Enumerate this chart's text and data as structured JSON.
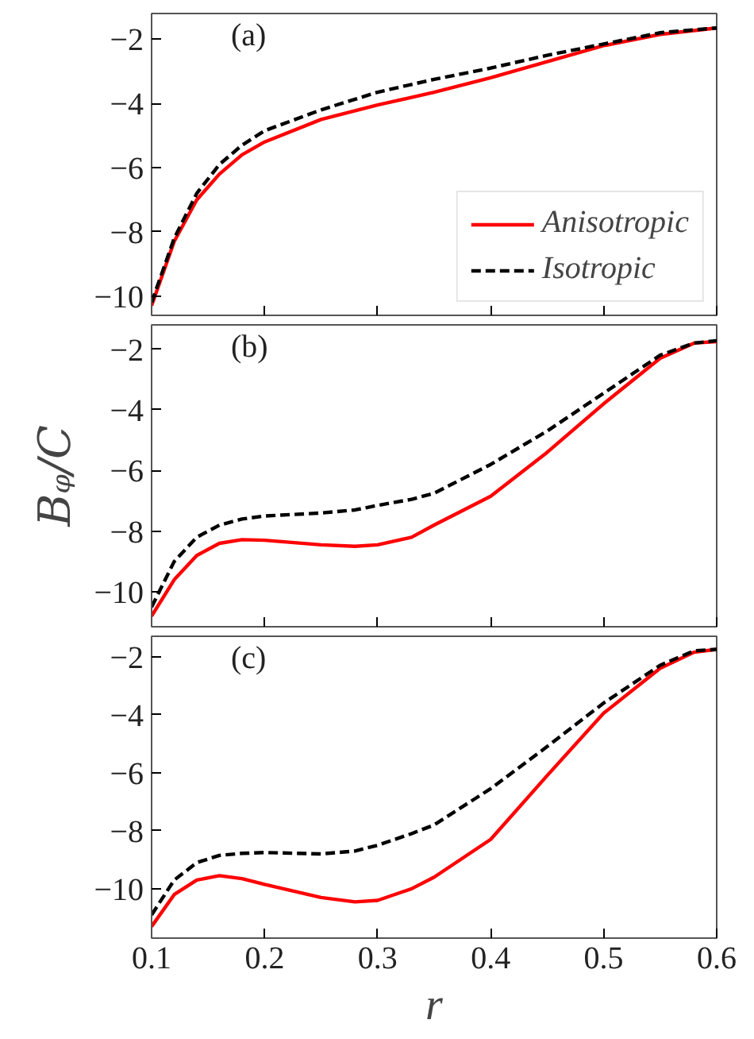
{
  "chart_data": [
    {
      "type": "line",
      "annotations": [
        "(a)"
      ],
      "xlim": [
        0.1,
        0.6
      ],
      "ylim": [
        -10.6,
        -1.2
      ],
      "xticks": [
        0.1,
        0.2,
        0.3,
        0.4,
        0.5,
        0.6
      ],
      "yticks": [
        {
          "value": -10,
          "label": "−10"
        },
        {
          "value": -8,
          "label": "−8"
        },
        {
          "value": -6,
          "label": "−6"
        },
        {
          "value": -4,
          "label": "−4"
        },
        {
          "value": -2,
          "label": "−2"
        }
      ],
      "tick_labels": "y",
      "legend": "bottom right",
      "grid": false,
      "x": [
        0.1,
        0.12,
        0.14,
        0.16,
        0.18,
        0.2,
        0.25,
        0.3,
        0.35,
        0.4,
        0.45,
        0.5,
        0.55,
        0.6
      ],
      "series": [
        {
          "name": "Anisotropic",
          "color": "#ff0000",
          "line_style": "solid",
          "values": [
            -10.3,
            -8.3,
            -7.0,
            -6.2,
            -5.6,
            -5.2,
            -4.5,
            -4.05,
            -3.65,
            -3.2,
            -2.7,
            -2.2,
            -1.85,
            -1.65
          ]
        },
        {
          "name": "Isotropic",
          "color": "#000000",
          "line_style": "dashed",
          "values": [
            -10.2,
            -8.2,
            -6.8,
            -5.9,
            -5.3,
            -4.85,
            -4.2,
            -3.65,
            -3.25,
            -2.9,
            -2.5,
            -2.15,
            -1.8,
            -1.65
          ]
        }
      ]
    },
    {
      "type": "line",
      "annotations": [
        "(b)"
      ],
      "ylabel": "Bᵩ/C",
      "xlim": [
        0.1,
        0.6
      ],
      "ylim": [
        -11.15,
        -1.2
      ],
      "xticks": [
        0.1,
        0.2,
        0.3,
        0.4,
        0.5,
        0.6
      ],
      "yticks": [
        {
          "value": -10,
          "label": "−10"
        },
        {
          "value": -8,
          "label": "−8"
        },
        {
          "value": -6,
          "label": "−6"
        },
        {
          "value": -4,
          "label": "−4"
        },
        {
          "value": -2,
          "label": "−2"
        }
      ],
      "tick_labels": "y",
      "grid": false,
      "x": [
        0.1,
        0.12,
        0.14,
        0.16,
        0.18,
        0.2,
        0.25,
        0.28,
        0.3,
        0.33,
        0.35,
        0.4,
        0.45,
        0.5,
        0.55,
        0.58,
        0.6
      ],
      "series": [
        {
          "color": "#ff0000",
          "line_style": "solid",
          "values": [
            -10.8,
            -9.6,
            -8.8,
            -8.4,
            -8.28,
            -8.3,
            -8.45,
            -8.5,
            -8.45,
            -8.2,
            -7.8,
            -6.85,
            -5.4,
            -3.8,
            -2.3,
            -1.8,
            -1.75
          ]
        },
        {
          "color": "#000000",
          "line_style": "dashed",
          "values": [
            -10.5,
            -9.0,
            -8.2,
            -7.8,
            -7.6,
            -7.5,
            -7.4,
            -7.3,
            -7.15,
            -6.95,
            -6.75,
            -5.8,
            -4.7,
            -3.45,
            -2.2,
            -1.8,
            -1.72
          ]
        }
      ]
    },
    {
      "type": "line",
      "annotations": [
        "(c)"
      ],
      "xlabel": "r",
      "xlim": [
        0.1,
        0.6
      ],
      "ylim": [
        -11.7,
        -1.3
      ],
      "xticks": [
        0.1,
        0.2,
        0.3,
        0.4,
        0.5,
        0.6
      ],
      "yticks": [
        {
          "value": -10,
          "label": "−10"
        },
        {
          "value": -8,
          "label": "−8"
        },
        {
          "value": -6,
          "label": "−6"
        },
        {
          "value": -4,
          "label": "−4"
        },
        {
          "value": -2,
          "label": "−2"
        }
      ],
      "grid": false,
      "x": [
        0.1,
        0.12,
        0.14,
        0.16,
        0.18,
        0.2,
        0.25,
        0.28,
        0.3,
        0.33,
        0.35,
        0.4,
        0.45,
        0.5,
        0.55,
        0.58,
        0.6
      ],
      "series": [
        {
          "color": "#ff0000",
          "line_style": "solid",
          "values": [
            -11.3,
            -10.2,
            -9.7,
            -9.55,
            -9.65,
            -9.85,
            -10.3,
            -10.45,
            -10.4,
            -10.0,
            -9.6,
            -8.3,
            -6.1,
            -3.95,
            -2.4,
            -1.85,
            -1.75
          ]
        },
        {
          "color": "#000000",
          "line_style": "dashed",
          "values": [
            -10.9,
            -9.7,
            -9.1,
            -8.85,
            -8.78,
            -8.75,
            -8.8,
            -8.7,
            -8.5,
            -8.1,
            -7.8,
            -6.55,
            -5.1,
            -3.6,
            -2.3,
            -1.8,
            -1.75
          ]
        }
      ]
    }
  ]
}
